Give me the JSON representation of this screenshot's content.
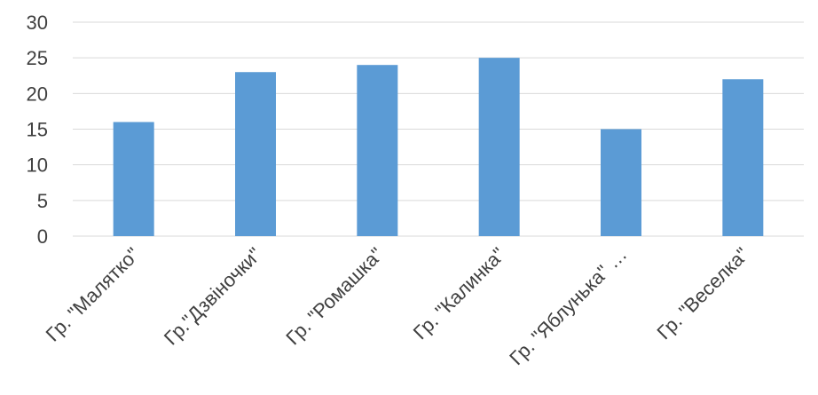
{
  "chart_data": {
    "type": "bar",
    "categories": [
      "Гр. \"Малятко\"",
      "Гр.\"Дзвіночки\"",
      "Гр. \"Ромашка\"",
      "Гр. \"Калинка\"",
      "Гр. \"Яблунька\" …",
      "Гр. \"Веселка\""
    ],
    "values": [
      16,
      23,
      24,
      25,
      15,
      22
    ],
    "title": "",
    "xlabel": "",
    "ylabel": "",
    "ylim": [
      0,
      30
    ],
    "yticks": [
      0,
      5,
      10,
      15,
      20,
      25,
      30
    ],
    "grid": true,
    "legend": "none",
    "colors": {
      "bar": "#5B9BD5",
      "grid": "#D9D9D9",
      "text": "#404040"
    }
  }
}
